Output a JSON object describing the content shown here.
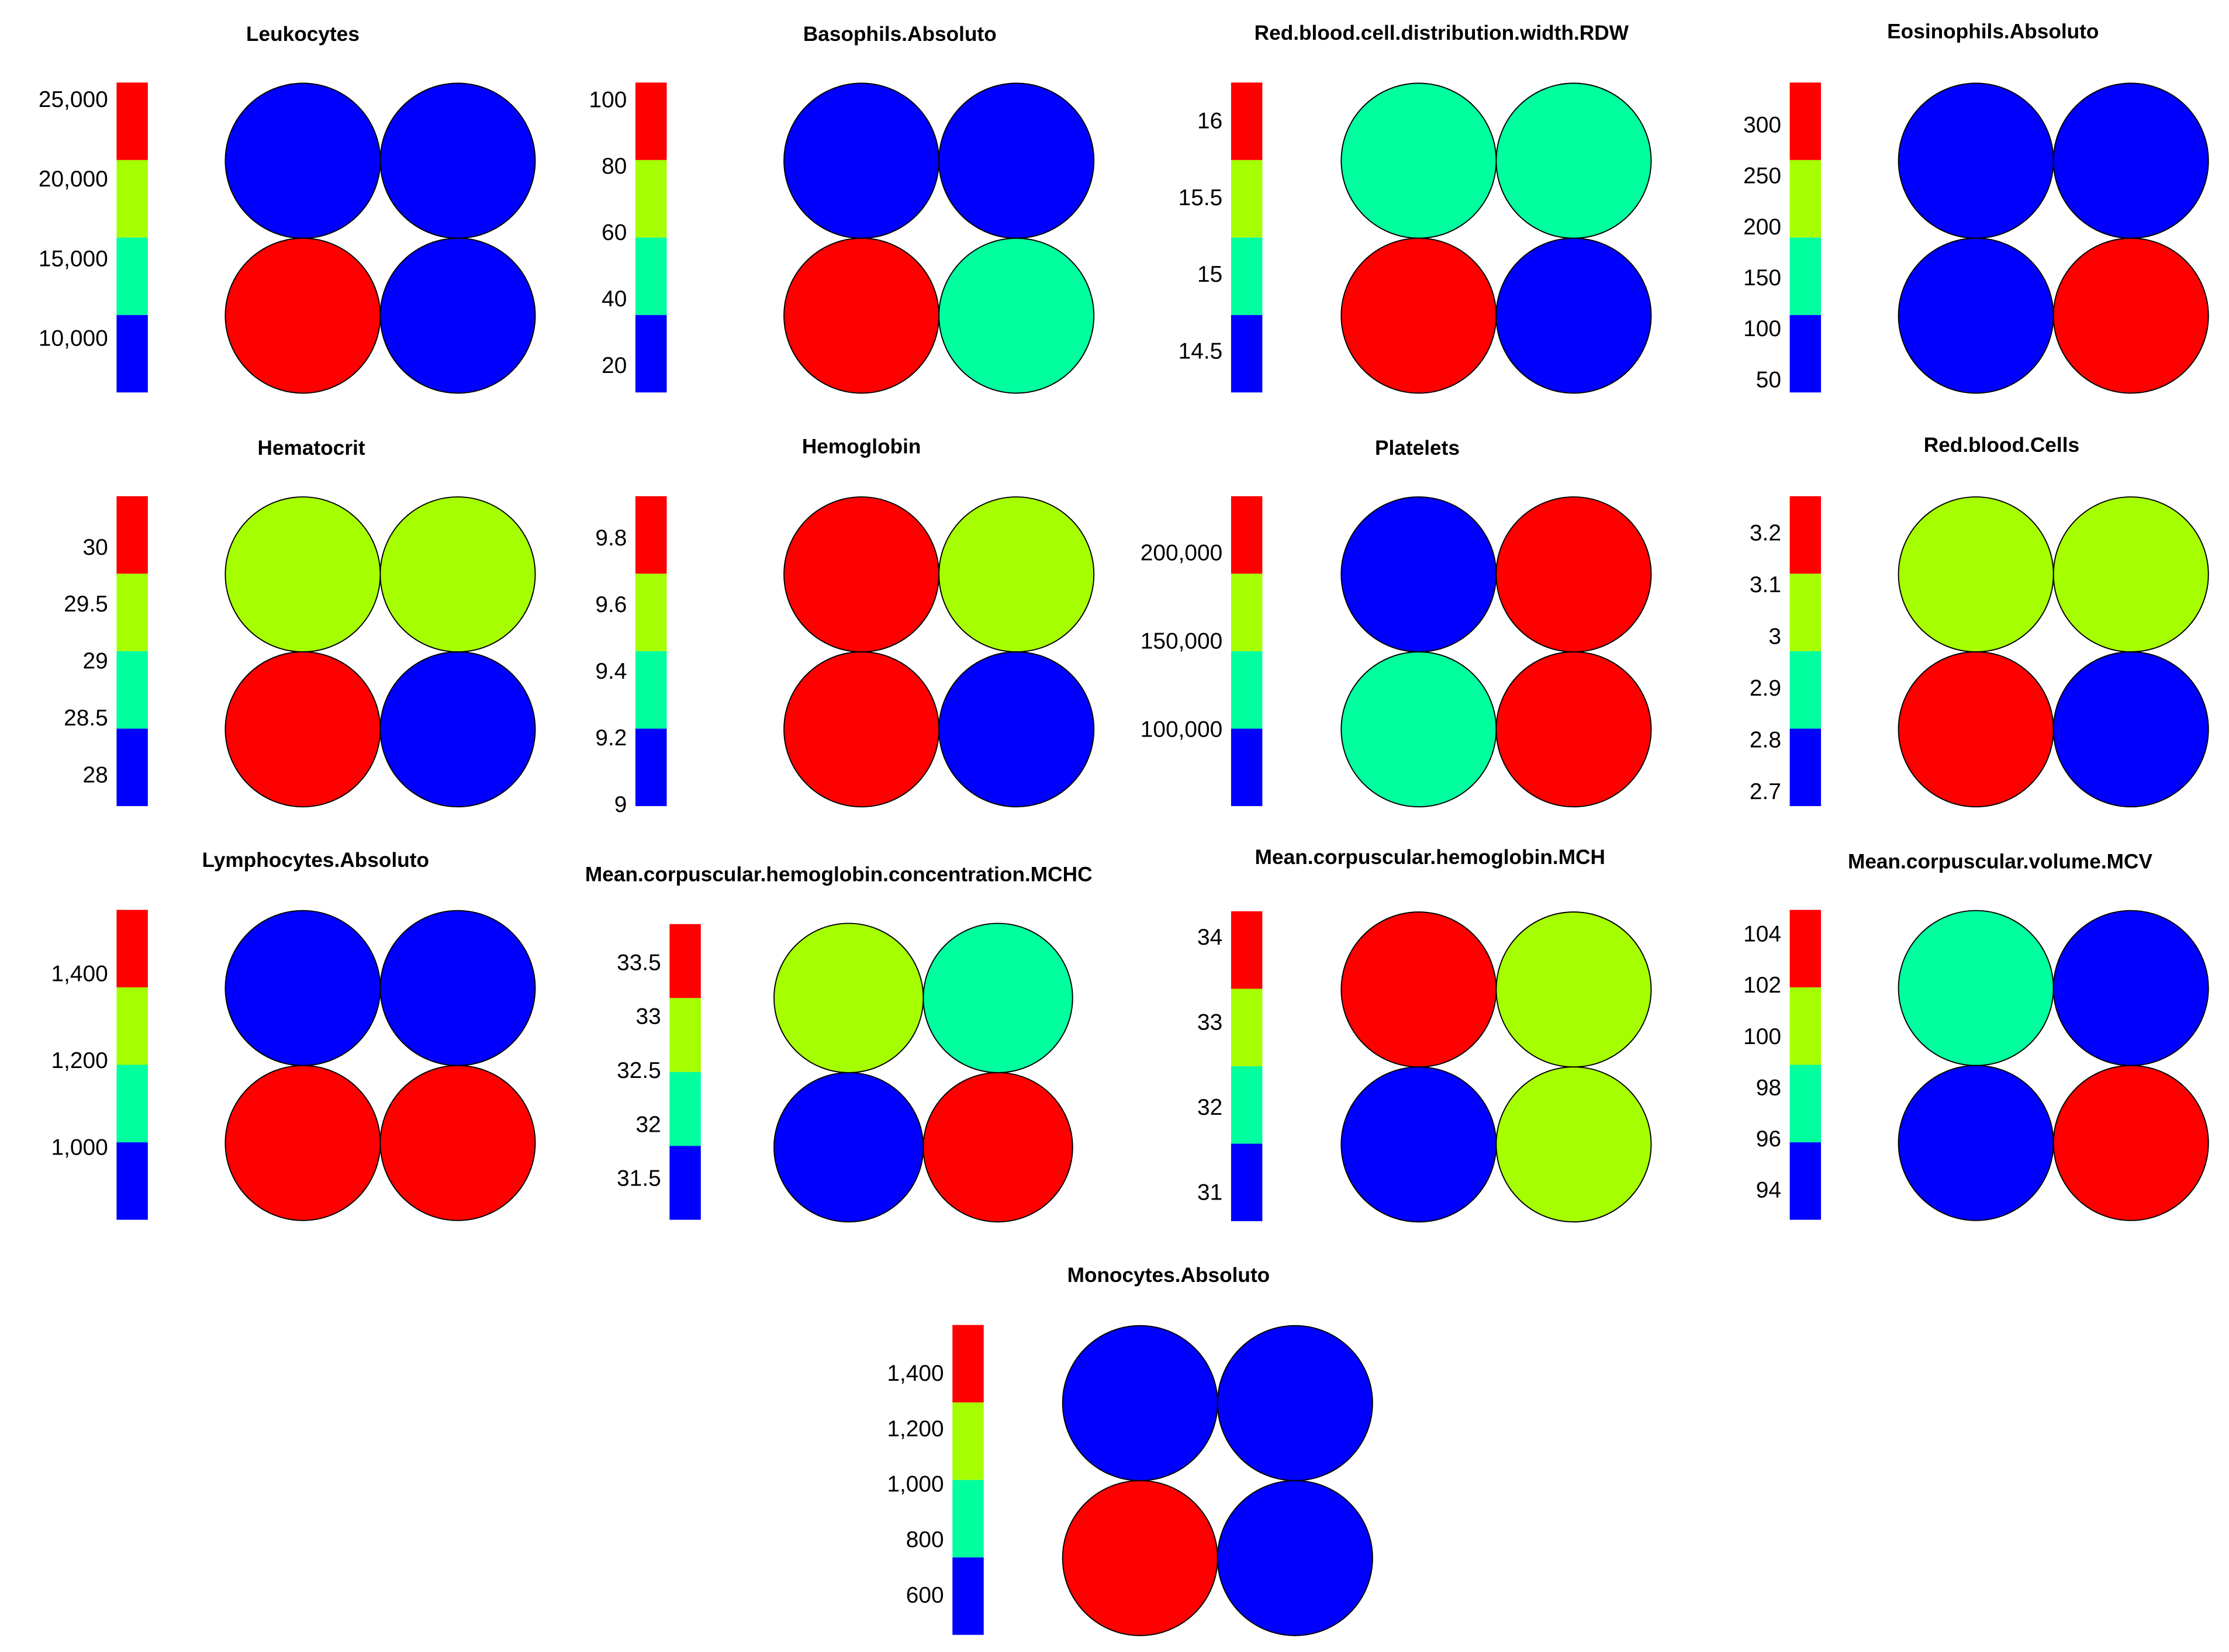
{
  "chart_data": [
    {
      "type": "heatmap",
      "title": "Leukocytes",
      "ylim": [
        6700,
        26150
      ],
      "yticks": [
        {
          "value": 10000,
          "label": "10,000"
        },
        {
          "value": 15000,
          "label": "15,000"
        },
        {
          "value": 20000,
          "label": "20,000"
        },
        {
          "value": 25000,
          "label": "25,000"
        }
      ],
      "colors": [
        "#0000ff",
        "#00ff9f",
        "#a6ff00",
        "#ff0000"
      ],
      "values": [
        9100,
        9100,
        23700,
        9100
      ]
    },
    {
      "type": "heatmap",
      "title": "Basophils.Absoluto",
      "ylim": [
        12.3,
        105.6
      ],
      "yticks": [
        20,
        40,
        60,
        80,
        100
      ],
      "colors": [
        "#0000ff",
        "#00ff9f",
        "#a6ff00",
        "#ff0000"
      ],
      "values": [
        24,
        24,
        94,
        47
      ]
    },
    {
      "type": "heatmap",
      "title": "Red.blood.cell.distribution.width.RDW",
      "ylim": [
        14.24,
        16.26
      ],
      "yticks": [
        14.5,
        15,
        15.5,
        16
      ],
      "colors": [
        "#0000ff",
        "#00ff9f",
        "#a6ff00",
        "#ff0000"
      ],
      "values": [
        15.0,
        15.0,
        16.0,
        14.5
      ]
    },
    {
      "type": "heatmap",
      "title": "Eosinophils.Absoluto",
      "ylim": [
        39,
        343
      ],
      "yticks": [
        50,
        100,
        150,
        200,
        250,
        300
      ],
      "colors": [
        "#0000ff",
        "#00ff9f",
        "#a6ff00",
        "#ff0000"
      ],
      "values": [
        77,
        77,
        77,
        305
      ]
    },
    {
      "type": "heatmap",
      "title": "Hematocrit",
      "ylim": [
        27.74,
        30.46
      ],
      "yticks": [
        28,
        28.5,
        29,
        29.5,
        30
      ],
      "colors": [
        "#0000ff",
        "#00ff9f",
        "#a6ff00",
        "#ff0000"
      ],
      "values": [
        29.4,
        29.4,
        30.1,
        28.1
      ]
    },
    {
      "type": "heatmap",
      "title": "Hemoglobin",
      "ylim": [
        9.0,
        9.93
      ],
      "yticks": [
        9,
        9.2,
        9.4,
        9.6,
        9.8
      ],
      "colors": [
        "#0000ff",
        "#00ff9f",
        "#a6ff00",
        "#ff0000"
      ],
      "values": [
        9.8,
        9.6,
        9.8,
        9.1
      ]
    },
    {
      "type": "heatmap",
      "title": "Platelets",
      "ylim": [
        57300,
        233000
      ],
      "yticks": [
        {
          "value": 100000,
          "label": "100,000"
        },
        {
          "value": 150000,
          "label": "150,000"
        },
        {
          "value": 200000,
          "label": "200,000"
        }
      ],
      "colors": [
        "#0000ff",
        "#00ff9f",
        "#a6ff00",
        "#ff0000"
      ],
      "values": [
        79000,
        211000,
        123000,
        211000
      ]
    },
    {
      "type": "heatmap",
      "title": "Red.blood.Cells",
      "ylim": [
        2.675,
        3.274
      ],
      "yticks": [
        2.7,
        2.8,
        2.9,
        3,
        3.1,
        3.2
      ],
      "colors": [
        "#0000ff",
        "#00ff9f",
        "#a6ff00",
        "#ff0000"
      ],
      "values": [
        3.05,
        3.05,
        3.2,
        2.75
      ]
    },
    {
      "type": "heatmap",
      "title": "Lymphocytes.Absoluto",
      "ylim": [
        836,
        1551
      ],
      "yticks": [
        {
          "value": 1000,
          "label": "1,000"
        },
        {
          "value": 1200,
          "label": "1,200"
        },
        {
          "value": 1400,
          "label": "1,400"
        }
      ],
      "colors": [
        "#0000ff",
        "#00ff9f",
        "#a6ff00",
        "#ff0000"
      ],
      "values": [
        925,
        925,
        1462,
        1462
      ]
    },
    {
      "type": "heatmap",
      "title": "Mean.corpuscular.hemoglobin.concentration.MCHC",
      "ylim": [
        31.13,
        33.87
      ],
      "yticks": [
        31.5,
        32,
        32.5,
        33,
        33.5
      ],
      "colors": [
        "#0000ff",
        "#00ff9f",
        "#a6ff00",
        "#ff0000"
      ],
      "values": [
        32.84,
        32.16,
        31.47,
        33.53
      ]
    },
    {
      "type": "heatmap",
      "title": "Mean.corpuscular.hemoglobin.MCH",
      "ylim": [
        30.68,
        34.32
      ],
      "yticks": [
        31,
        32,
        33,
        34
      ],
      "colors": [
        "#0000ff",
        "#00ff9f",
        "#a6ff00",
        "#ff0000"
      ],
      "values": [
        33.87,
        32.96,
        31.14,
        32.96
      ]
    },
    {
      "type": "heatmap",
      "title": "Mean.corpuscular.volume.MCV",
      "ylim": [
        92.9,
        105
      ],
      "yticks": [
        94,
        96,
        98,
        100,
        102,
        104
      ],
      "colors": [
        "#0000ff",
        "#00ff9f",
        "#a6ff00",
        "#ff0000"
      ],
      "values": [
        97.4,
        94.4,
        94.4,
        103.5
      ]
    },
    {
      "type": "heatmap",
      "title": "Monocytes.Absoluto",
      "ylim": [
        461.5,
        1579.5
      ],
      "yticks": [
        {
          "value": 600,
          "label": "600"
        },
        {
          "value": 800,
          "label": "800"
        },
        {
          "value": 1000,
          "label": "1,000"
        },
        {
          "value": 1200,
          "label": "1,200"
        },
        {
          "value": 1400,
          "label": "1,400"
        }
      ],
      "colors": [
        "#0000ff",
        "#00ff9f",
        "#a6ff00",
        "#ff0000"
      ],
      "values": [
        601,
        601,
        1440,
        601
      ]
    }
  ]
}
